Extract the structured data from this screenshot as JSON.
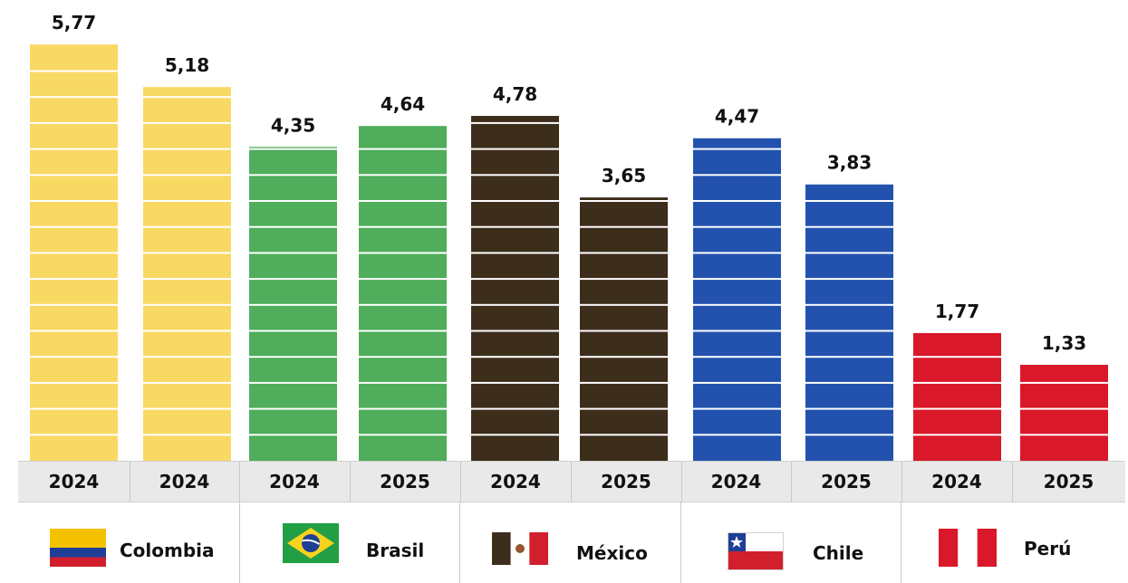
{
  "chart_data": {
    "type": "bar",
    "ylim": [
      0,
      6
    ],
    "bars": [
      {
        "group": "Colombia",
        "year": "2024",
        "value": 5.77,
        "label": "5,77",
        "color": "#f8d963"
      },
      {
        "group": "Colombia",
        "year": "2024",
        "value": 5.18,
        "label": "5,18",
        "color": "#f8d963"
      },
      {
        "group": "Brasil",
        "year": "2024",
        "value": 4.35,
        "label": "4,35",
        "color": "#4fad5b"
      },
      {
        "group": "Brasil",
        "year": "2025",
        "value": 4.64,
        "label": "4,64",
        "color": "#4fad5b"
      },
      {
        "group": "México",
        "year": "2024",
        "value": 4.78,
        "label": "4,78",
        "color": "#3d2e1c"
      },
      {
        "group": "México",
        "year": "2025",
        "value": 3.65,
        "label": "3,65",
        "color": "#3d2e1c"
      },
      {
        "group": "Chile",
        "year": "2024",
        "value": 4.47,
        "label": "4,47",
        "color": "#2252ad"
      },
      {
        "group": "Chile",
        "year": "2025",
        "value": 3.83,
        "label": "3,83",
        "color": "#2252ad"
      },
      {
        "group": "Perú",
        "year": "2024",
        "value": 1.77,
        "label": "1,77",
        "color": "#d9182a"
      },
      {
        "group": "Perú",
        "year": "2025",
        "value": 1.33,
        "label": "1,33",
        "color": "#d9182a"
      }
    ],
    "countries": [
      {
        "name": "Colombia",
        "flag": "colombia-flag-icon"
      },
      {
        "name": "Brasil",
        "flag": "brazil-flag-icon"
      },
      {
        "name": "México",
        "flag": "mexico-flag-icon"
      },
      {
        "name": "Chile",
        "flag": "chile-flag-icon"
      },
      {
        "name": "Perú",
        "flag": "peru-flag-icon"
      }
    ]
  }
}
